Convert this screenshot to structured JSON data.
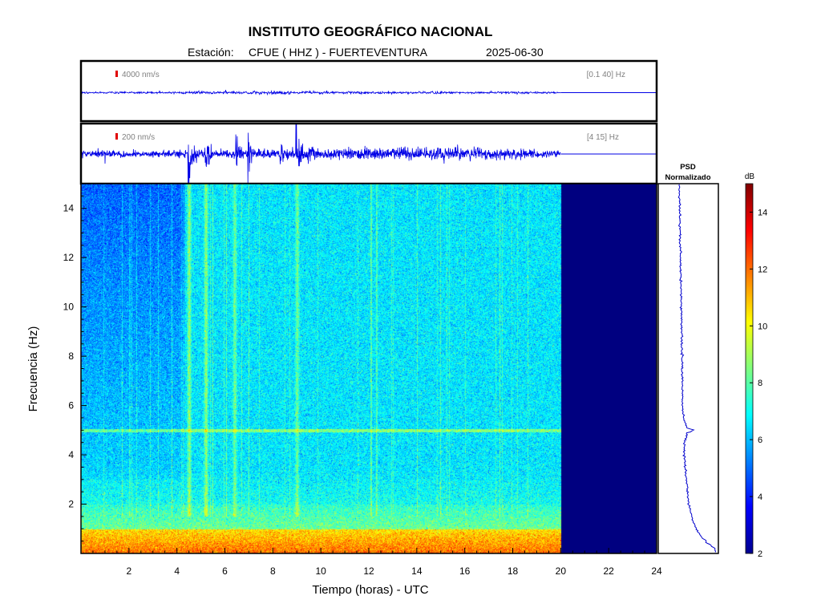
{
  "header": {
    "title": "INSTITUTO GEOGRÁFICO NACIONAL",
    "station_prefix": "Estación:",
    "station": "CFUE ( HHZ ) - FUERTEVENTURA",
    "date": "2025-06-30"
  },
  "chart_data": [
    {
      "type": "line",
      "panel": "seismogram-broadband",
      "scale_label": "4000 nm/s",
      "band_label": "[0.1 40] Hz",
      "data_end_hour": 20,
      "xlim": [
        0,
        24
      ],
      "envelope": {
        "hours": [
          0,
          4,
          4.4,
          6,
          8,
          10,
          14,
          18,
          20
        ],
        "amplitude": [
          0.04,
          0.04,
          0.07,
          0.05,
          0.06,
          0.05,
          0.04,
          0.04,
          0.03
        ]
      }
    },
    {
      "type": "line",
      "panel": "seismogram-filtered",
      "scale_label": "200 nm/s",
      "band_label": "[4 15] Hz",
      "data_end_hour": 20,
      "xlim": [
        0,
        24
      ],
      "bursts": [
        {
          "hour": 1.0,
          "amplitude": 0.25,
          "width": 0.05
        },
        {
          "hour": 4.5,
          "amplitude": 1.0,
          "width": 0.25
        },
        {
          "hour": 5.2,
          "amplitude": 0.85,
          "width": 0.2
        },
        {
          "hour": 6.5,
          "amplitude": 0.65,
          "width": 0.2
        },
        {
          "hour": 7.0,
          "amplitude": 0.6,
          "width": 0.2
        },
        {
          "hour": 8.3,
          "amplitude": 0.55,
          "width": 0.15
        },
        {
          "hour": 9.0,
          "amplitude": 0.8,
          "width": 0.25
        },
        {
          "hour": 9.5,
          "amplitude": 0.5,
          "width": 0.2
        }
      ],
      "background_amplitude": {
        "hours": [
          0,
          4,
          10,
          14,
          18,
          20
        ],
        "values": [
          0.1,
          0.12,
          0.2,
          0.22,
          0.18,
          0.12
        ]
      }
    },
    {
      "type": "heatmap",
      "panel": "spectrogram",
      "xlabel": "Tiempo (horas) - UTC",
      "ylabel": "Frecuencia  (Hz)",
      "xlim": [
        0,
        24
      ],
      "ylim": [
        0,
        15
      ],
      "xticks": [
        2,
        4,
        6,
        8,
        10,
        12,
        14,
        16,
        18,
        20,
        22,
        24
      ],
      "yticks": [
        2,
        4,
        6,
        8,
        10,
        12,
        14
      ],
      "data_end_hour": 20,
      "no_data_value_db": 2,
      "low_freq_band": {
        "max_hz": 1.0,
        "db": 12
      },
      "persistent_lines_hz": [
        {
          "hz": 5.0,
          "db": 8.5
        }
      ],
      "quiet_zone": {
        "hours": [
          0,
          4.3
        ],
        "hz": [
          3,
          15
        ],
        "db": 5
      },
      "events_hours": [
        {
          "hour": 4.5,
          "db": 9.5
        },
        {
          "hour": 5.2,
          "db": 9.5
        },
        {
          "hour": 6.4,
          "db": 9
        },
        {
          "hour": 9.0,
          "db": 9
        }
      ]
    },
    {
      "type": "line",
      "panel": "psd",
      "title": "PSD Normalizado",
      "ylim": [
        0,
        15
      ],
      "freq_hz": [
        0,
        0.2,
        0.5,
        1,
        1.5,
        2,
        3,
        4,
        4.5,
        4.9,
        5.0,
        5.1,
        5.5,
        6,
        7,
        8,
        9,
        10,
        11,
        12,
        13,
        14,
        15
      ],
      "value": [
        1.0,
        0.95,
        0.72,
        0.5,
        0.4,
        0.33,
        0.27,
        0.22,
        0.22,
        0.3,
        0.45,
        0.28,
        0.2,
        0.18,
        0.17,
        0.17,
        0.16,
        0.15,
        0.14,
        0.13,
        0.12,
        0.11,
        0.1
      ]
    },
    {
      "type": "heatmap",
      "panel": "colorbar",
      "unit": "dB",
      "range": [
        2,
        15
      ],
      "ticks": [
        2,
        4,
        6,
        8,
        10,
        12,
        14
      ],
      "colormap": "jet"
    }
  ]
}
